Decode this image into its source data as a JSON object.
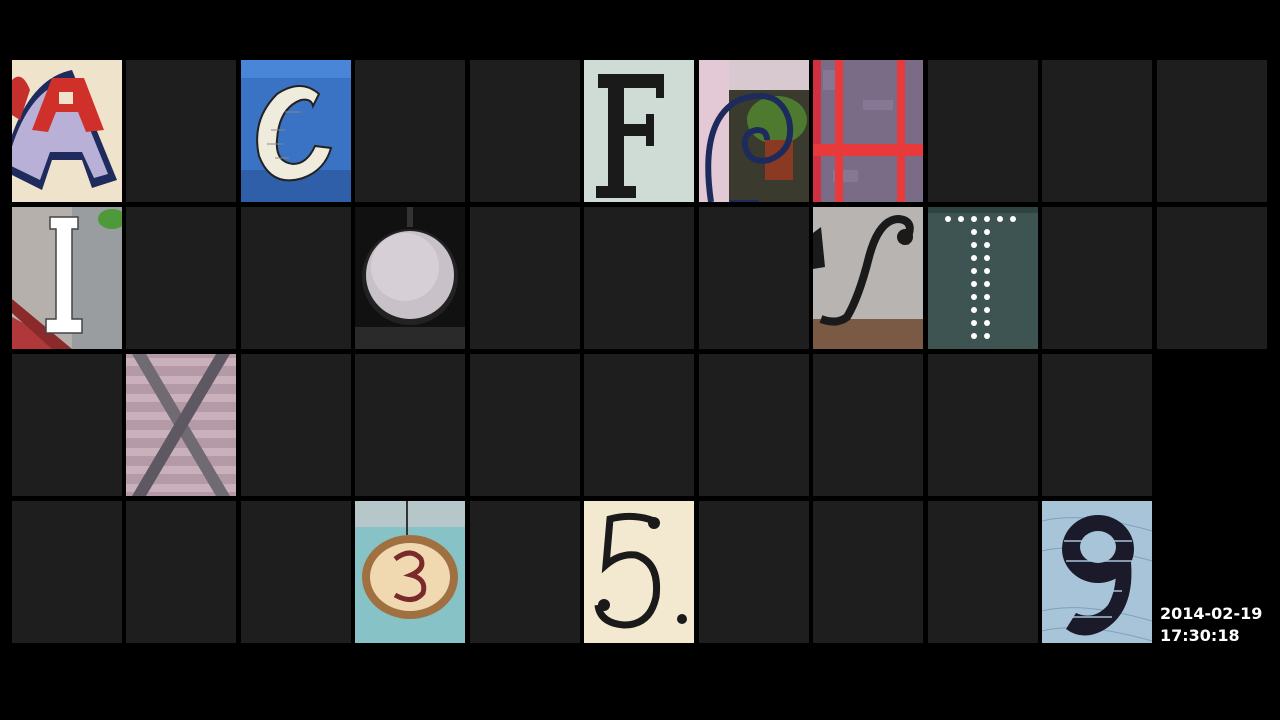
{
  "timestamp": {
    "date": "2014-02-19",
    "time": "17:30:18"
  },
  "grid": {
    "rows": [
      [
        {
          "char": "A",
          "photo": "red-white-letter-a-sign"
        },
        {
          "char": "",
          "photo": ""
        },
        {
          "char": "C",
          "photo": "white-brick-letter-c-on-blue"
        },
        {
          "char": "",
          "photo": ""
        },
        {
          "char": "",
          "photo": ""
        },
        {
          "char": "F",
          "photo": "black-letter-f-on-pale-wall"
        },
        {
          "char": "G",
          "photo": "wrought-iron-spiral-and-plant"
        },
        {
          "char": "H",
          "photo": "red-bars-h-on-glass"
        },
        {
          "char": "",
          "photo": ""
        },
        {
          "char": "",
          "photo": ""
        },
        {
          "char": ""
        }
      ],
      [
        {
          "char": "I",
          "photo": "white-letter-i-on-window"
        },
        {
          "char": "",
          "photo": ""
        },
        {
          "char": "",
          "photo": ""
        },
        {
          "char": "O",
          "photo": "round-metal-disc"
        },
        {
          "char": "",
          "photo": ""
        },
        {
          "char": "",
          "photo": ""
        },
        {
          "char": "",
          "photo": ""
        },
        {
          "char": "S",
          "photo": "script-s-on-grey-plate"
        },
        {
          "char": "T",
          "photo": "led-dot-letter-t"
        },
        {
          "char": "",
          "photo": ""
        },
        {
          "char": ""
        }
      ],
      [
        {
          "char": "",
          "photo": ""
        },
        {
          "char": "X",
          "photo": "crossed-beams-x-on-shutter"
        },
        {
          "char": "",
          "photo": ""
        },
        {
          "char": "",
          "photo": ""
        },
        {
          "char": "",
          "photo": ""
        },
        {
          "char": "",
          "photo": ""
        },
        {
          "char": "",
          "photo": ""
        },
        {
          "char": "",
          "photo": ""
        },
        {
          "char": "",
          "photo": ""
        },
        {
          "char": "",
          "photo": ""
        }
      ],
      [
        {
          "char": "",
          "photo": ""
        },
        {
          "char": "",
          "photo": ""
        },
        {
          "char": "",
          "photo": ""
        },
        {
          "char": "3",
          "photo": "number-3-round-plaque"
        },
        {
          "char": "",
          "photo": ""
        },
        {
          "char": "5",
          "photo": "number-5-on-cream-plaque"
        },
        {
          "char": "",
          "photo": ""
        },
        {
          "char": "",
          "photo": ""
        },
        {
          "char": "",
          "photo": ""
        },
        {
          "char": "9",
          "photo": "number-9-on-banknote"
        }
      ]
    ]
  }
}
